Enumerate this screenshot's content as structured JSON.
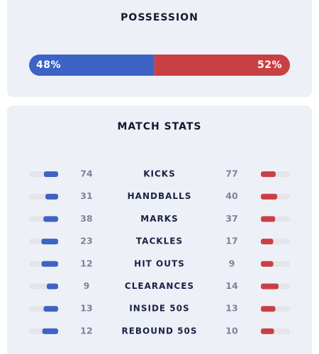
{
  "possession": {
    "title": "POSSESSION",
    "home": {
      "value": 48,
      "label": "48%"
    },
    "away": {
      "value": 52,
      "label": "52%"
    }
  },
  "match_stats": {
    "title": "MATCH STATS",
    "rows": [
      {
        "label": "KICKS",
        "home": 74,
        "away": 77
      },
      {
        "label": "HANDBALLS",
        "home": 31,
        "away": 40
      },
      {
        "label": "MARKS",
        "home": 38,
        "away": 37
      },
      {
        "label": "TACKLES",
        "home": 23,
        "away": 17
      },
      {
        "label": "HIT OUTS",
        "home": 12,
        "away": 9
      },
      {
        "label": "CLEARANCES",
        "home": 9,
        "away": 14
      },
      {
        "label": "INSIDE 50S",
        "home": 13,
        "away": 13
      },
      {
        "label": "REBOUND 50S",
        "home": 12,
        "away": 10
      }
    ]
  }
}
